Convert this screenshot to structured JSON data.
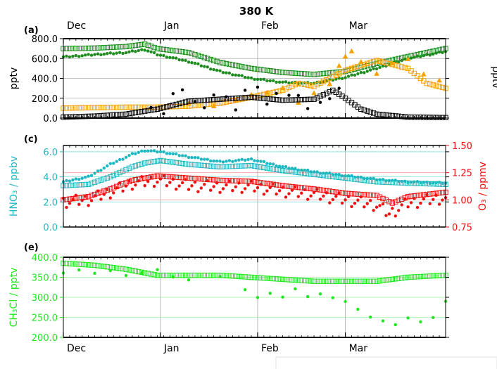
{
  "figure": {
    "title": "380 K",
    "x_axis": {
      "range_days": [
        0,
        122
      ],
      "month_labels": [
        {
          "label": "Dec",
          "day": 0
        },
        {
          "label": "Jan",
          "day": 31
        },
        {
          "label": "Feb",
          "day": 62
        },
        {
          "label": "Mar",
          "day": 90
        }
      ]
    }
  },
  "chart_data": [
    {
      "panel_label": "(a)",
      "type": "scatter",
      "ylabel": "pptv",
      "right_ylabel_fragment": "pptv",
      "ylim": [
        0,
        800
      ],
      "yticks": [
        "0.0",
        "200.0",
        "400.0",
        "600.0",
        "800.0"
      ],
      "ytick_values": [
        0,
        200,
        400,
        600,
        800
      ],
      "grid": true,
      "colors": {
        "green": "#1e8c1e",
        "orange": "#f5a000",
        "black": "#000000"
      },
      "series": [
        {
          "color": "green",
          "marker": "open-square",
          "x": [
            0,
            10,
            20,
            26,
            30,
            40,
            50,
            60,
            70,
            80,
            90,
            100,
            110,
            122
          ],
          "y": [
            700,
            705,
            720,
            745,
            700,
            660,
            560,
            500,
            460,
            440,
            470,
            550,
            620,
            700
          ]
        },
        {
          "color": "green",
          "marker": "filled-dot",
          "x": [
            0,
            10,
            20,
            26,
            30,
            40,
            50,
            60,
            70,
            80,
            90,
            100,
            110,
            122
          ],
          "y": [
            615,
            640,
            660,
            690,
            640,
            570,
            470,
            400,
            360,
            350,
            410,
            500,
            600,
            670
          ]
        },
        {
          "color": "orange",
          "marker": "open-square",
          "x": [
            0,
            10,
            20,
            30,
            40,
            50,
            60,
            70,
            75,
            80,
            90,
            100,
            110,
            116,
            122
          ],
          "y": [
            100,
            105,
            110,
            110,
            120,
            150,
            210,
            280,
            350,
            320,
            480,
            580,
            500,
            350,
            300
          ]
        },
        {
          "color": "orange",
          "marker": "filled-triangle",
          "x": [
            40,
            48,
            55,
            60,
            65,
            70,
            75,
            80,
            85,
            88,
            90,
            92,
            95,
            100,
            105,
            110,
            115,
            120
          ],
          "y": [
            150,
            120,
            180,
            230,
            260,
            300,
            160,
            250,
            350,
            520,
            620,
            680,
            560,
            450,
            550,
            600,
            440,
            380
          ]
        },
        {
          "color": "black",
          "marker": "open-square",
          "x": [
            0,
            10,
            20,
            30,
            40,
            50,
            60,
            70,
            80,
            86,
            90,
            95,
            100,
            110,
            122
          ],
          "y": [
            10,
            20,
            40,
            90,
            170,
            190,
            210,
            180,
            190,
            280,
            200,
            90,
            40,
            10,
            5
          ]
        },
        {
          "color": "black",
          "marker": "filled-dot",
          "x": [
            28,
            32,
            35,
            38,
            42,
            45,
            48,
            52,
            55,
            58,
            62,
            65,
            68,
            72,
            75,
            78,
            82,
            85,
            88
          ],
          "y": [
            100,
            50,
            240,
            280,
            160,
            100,
            230,
            210,
            80,
            280,
            310,
            140,
            250,
            230,
            230,
            100,
            160,
            200,
            300
          ]
        }
      ]
    },
    {
      "panel_label": "(c)",
      "type": "scatter",
      "ylabel_left": "HNO₃ / ppbv",
      "ylabel_right": "O₃ / ppmv",
      "ylim_left": [
        0,
        6.5
      ],
      "yticks_left": [
        "0.0",
        "2.0",
        "4.0",
        "6.0"
      ],
      "ytick_values_left": [
        0,
        2,
        4,
        6
      ],
      "ylim_right": [
        0.75,
        1.5
      ],
      "yticks_right": [
        "0.75",
        "1.00",
        "1.25",
        "1.50"
      ],
      "ytick_values_right": [
        0.75,
        1.0,
        1.25,
        1.5
      ],
      "grid": true,
      "colors": {
        "cyan": "#20b8c0",
        "red": "#ee1111"
      },
      "series": [
        {
          "color": "cyan",
          "marker": "open-square",
          "axis": "left",
          "x": [
            0,
            8,
            15,
            22,
            26,
            31,
            40,
            50,
            60,
            70,
            80,
            90,
            100,
            110,
            122
          ],
          "y": [
            3.3,
            3.4,
            4.0,
            4.8,
            5.1,
            5.3,
            5.0,
            4.8,
            4.9,
            4.5,
            4.2,
            3.9,
            3.6,
            3.5,
            3.4
          ]
        },
        {
          "color": "cyan",
          "marker": "filled-dot",
          "axis": "left",
          "x": [
            0,
            8,
            15,
            22,
            26,
            31,
            40,
            50,
            60,
            70,
            80,
            90,
            100,
            110,
            122
          ],
          "y": [
            3.6,
            4.0,
            5.0,
            5.8,
            6.1,
            6.0,
            5.6,
            5.2,
            5.4,
            4.8,
            4.4,
            4.1,
            3.8,
            3.6,
            3.5
          ]
        },
        {
          "color": "red",
          "marker": "open-square",
          "axis": "right",
          "x": [
            0,
            8,
            15,
            22,
            30,
            40,
            50,
            60,
            70,
            80,
            90,
            100,
            105,
            110,
            122
          ],
          "y": [
            1.0,
            1.03,
            1.1,
            1.18,
            1.22,
            1.2,
            1.18,
            1.17,
            1.13,
            1.1,
            1.06,
            1.04,
            0.97,
            1.03,
            1.07
          ]
        },
        {
          "color": "red",
          "marker": "filled-dot",
          "axis": "right",
          "x": [
            0,
            8,
            15,
            22,
            30,
            40,
            50,
            60,
            70,
            80,
            90,
            100,
            104,
            110,
            122
          ],
          "y": [
            0.98,
            1.0,
            1.07,
            1.15,
            1.18,
            1.13,
            1.12,
            1.12,
            1.08,
            1.05,
            1.0,
            0.95,
            0.87,
            0.97,
            1.02
          ]
        }
      ]
    },
    {
      "panel_label": "(e)",
      "type": "scatter",
      "ylabel": "CH₃Cl / pptv",
      "ylim": [
        200,
        400
      ],
      "yticks": [
        "200.0",
        "250.0",
        "300.0",
        "350.0",
        "400.0"
      ],
      "ytick_values": [
        200,
        250,
        300,
        350,
        400
      ],
      "grid": true,
      "colors": {
        "green": "#22e622"
      },
      "series": [
        {
          "color": "green",
          "marker": "open-square",
          "x": [
            0,
            10,
            20,
            30,
            40,
            50,
            60,
            70,
            80,
            90,
            100,
            110,
            122
          ],
          "y": [
            385,
            380,
            370,
            355,
            355,
            355,
            350,
            345,
            340,
            340,
            340,
            350,
            355
          ]
        },
        {
          "color": "green",
          "marker": "filled-dot",
          "x": [
            0,
            5,
            10,
            15,
            20,
            25,
            30,
            35,
            40,
            50,
            58,
            62,
            66,
            70,
            74,
            78,
            82,
            86,
            90,
            94,
            98,
            102,
            106,
            110,
            114,
            118,
            122
          ],
          "y": [
            360,
            370,
            360,
            365,
            355,
            360,
            370,
            350,
            345,
            350,
            320,
            300,
            310,
            300,
            320,
            300,
            310,
            300,
            290,
            270,
            250,
            240,
            230,
            250,
            240,
            250,
            290
          ]
        }
      ]
    }
  ]
}
